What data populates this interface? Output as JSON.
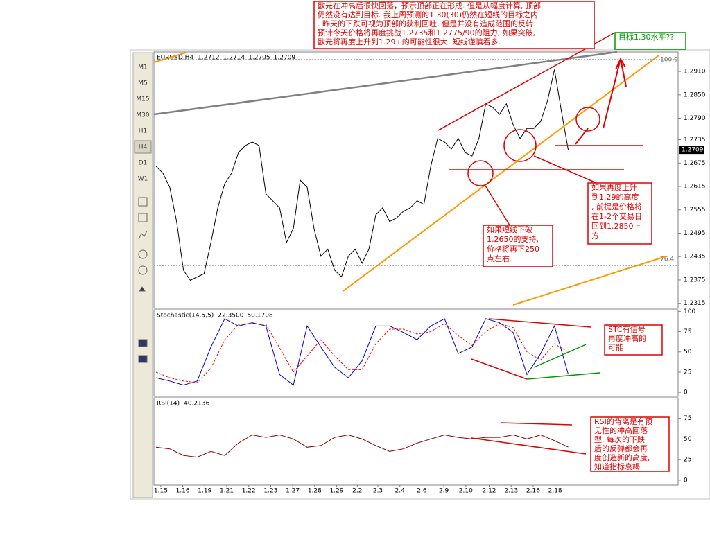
{
  "toolbar": [
    "M1",
    "M5",
    "M15",
    "M30",
    "H1",
    "H4",
    "D1",
    "W1"
  ],
  "annotations": [
    {
      "lines": [
        "欧元在冲高后很快回落，预示顶部正在形成. 但是从幅度计算, 顶部",
        "仍然没有达到目标. 我上周预测的1.30(30)仍然在短线的目标之内",
        ". 昨天的下跌可视为顶部的获利回吐, 但是并没有造成范围的反转.",
        "预计今天价格将再度挑战1.2735和1.2775/90的阻力, 如果突破,",
        "欧元将再度上升到1.29+的可能性很大. 短线谨慎看多."
      ]
    },
    {
      "lines": [
        "目标1.30水平??"
      ]
    },
    {
      "lines": [
        "如果再度上升",
        "到1.29的高度",
        ", 前提是价格将",
        "在1-2个交易日",
        "回到1.2850上",
        "方."
      ]
    },
    {
      "lines": [
        "如果短线下破",
        "1.2650的支持,",
        "价格将再下250",
        "点左右."
      ]
    },
    {
      "lines": [
        "STC有信号",
        "再度冲高的",
        "可能"
      ]
    },
    {
      "lines": [
        "RSI的背离是有预",
        "见性的冲高回落",
        "型, 每次的下跌",
        "后的反弹都会再",
        "度创造新的高度,",
        "知道指标衰竭"
      ]
    }
  ],
  "chart_data": [
    {
      "type": "line",
      "title": "EURUSD,H4",
      "readings": [
        1.2712,
        1.2714,
        1.2705,
        1.2709
      ],
      "current_price": 1.2709,
      "fib_levels": [
        {
          "value": 100,
          "label": "100.0"
        },
        76.4
      ],
      "x": [
        0,
        1,
        2,
        3,
        4,
        5,
        6,
        7,
        8,
        9,
        10,
        11,
        12,
        13,
        14,
        15,
        16,
        17,
        18,
        19,
        20,
        21,
        22,
        23,
        24,
        25,
        26,
        27,
        28,
        29,
        30,
        31,
        32,
        33,
        34,
        35,
        36,
        37,
        38,
        39,
        40,
        41,
        42,
        43,
        44,
        45,
        46,
        47,
        48,
        49,
        50,
        51,
        52,
        53,
        54,
        55,
        56,
        57,
        58,
        59,
        60
      ],
      "series": [
        {
          "color": "#000000",
          "values": [
            1.2667,
            1.2649,
            1.2613,
            1.2525,
            1.24,
            1.2374,
            1.2383,
            1.2391,
            1.2471,
            1.256,
            1.2622,
            1.2649,
            1.2702,
            1.272,
            1.2729,
            1.272,
            1.2596,
            1.2578,
            1.256,
            1.2471,
            1.2507,
            1.2631,
            1.2613,
            1.2507,
            1.2436,
            1.2454,
            1.24,
            1.2383,
            1.2436,
            1.2454,
            1.2418,
            1.2454,
            1.2542,
            1.256,
            1.2525,
            1.2534,
            1.2551,
            1.256,
            1.2578,
            1.2569,
            1.2667,
            1.2738,
            1.2729,
            1.2711,
            1.2738,
            1.2702,
            1.2693,
            1.2738,
            1.2827,
            1.2818,
            1.28,
            1.2827,
            1.2773,
            1.2738,
            1.2764,
            1.2764,
            1.2782,
            1.2835,
            1.2915,
            1.2809,
            1.2709
          ]
        }
      ],
      "xlim": [
        -0.3,
        76
      ],
      "ylim": [
        1.2302,
        1.296
      ],
      "yticks": [
        {
          "value": 1.291,
          "label": "1.2910"
        },
        {
          "value": 1.285,
          "label": "1.2850"
        },
        {
          "value": 1.279,
          "label": "1.2790"
        },
        1.2735,
        1.2675,
        1.2615,
        1.2555,
        1.2495,
        1.2435,
        1.2375,
        1.2315
      ]
    },
    {
      "type": "line",
      "title": "Stochastic(14,5,5)",
      "readings": [
        {
          "value": 22.35,
          "label": "22.3500"
        },
        {
          "value": 50.1708,
          "label": "50.1708"
        }
      ],
      "x": [
        0,
        2,
        4,
        6,
        8,
        10,
        12,
        14,
        16,
        18,
        20,
        22,
        24,
        26,
        28,
        30,
        32,
        34,
        36,
        38,
        40,
        42,
        44,
        46,
        48,
        50,
        52,
        54,
        56,
        58,
        60
      ],
      "series": [
        {
          "color": "#0000cc",
          "values": [
            18,
            14,
            9,
            14,
            56,
            91,
            82,
            86,
            82,
            22,
            9,
            82,
            56,
            31,
            18,
            39,
            82,
            82,
            74,
            65,
            82,
            91,
            48,
            56,
            91,
            86,
            74,
            22,
            48,
            82,
            22.35
          ]
        },
        {
          "color": "#ff0000",
          "dashed": true,
          "values": [
            25,
            18,
            14,
            12,
            30,
            65,
            84,
            85,
            84,
            55,
            25,
            45,
            65,
            45,
            28,
            28,
            60,
            78,
            78,
            72,
            75,
            85,
            70,
            58,
            75,
            85,
            80,
            50,
            40,
            60,
            50.1708
          ]
        }
      ],
      "xlim": [
        -0.3,
        76
      ],
      "ylim": [
        -5,
        102
      ],
      "yticks": [
        100,
        75,
        50,
        25,
        0
      ]
    },
    {
      "type": "line",
      "title": "RSI(14)",
      "readings": [
        40.2136
      ],
      "x": [
        0,
        2,
        4,
        6,
        8,
        10,
        12,
        14,
        16,
        18,
        20,
        22,
        24,
        26,
        28,
        30,
        32,
        34,
        36,
        38,
        40,
        42,
        44,
        46,
        48,
        50,
        52,
        54,
        56,
        58,
        60
      ],
      "series": [
        {
          "color": "#8b0000",
          "values": [
            40,
            38,
            30,
            28,
            35,
            30,
            45,
            55,
            52,
            55,
            50,
            40,
            42,
            52,
            55,
            50,
            42,
            35,
            38,
            45,
            50,
            55,
            52,
            50,
            52,
            52,
            55,
            50,
            55,
            48,
            40.2136
          ]
        }
      ],
      "xlim": [
        -0.3,
        76
      ],
      "ylim": [
        -6,
        100
      ],
      "yticks": [
        75,
        50,
        25,
        0
      ],
      "xticks": [
        {
          "value": 0.7,
          "label": "1.15"
        },
        {
          "value": 3.9,
          "label": "1.16"
        },
        {
          "value": 7.1,
          "label": "1.19"
        },
        {
          "value": 10.3,
          "label": "1.21"
        },
        {
          "value": 13.5,
          "label": "1.22"
        },
        {
          "value": 16.7,
          "label": "1.23"
        },
        {
          "value": 19.9,
          "label": "1.27"
        },
        {
          "value": 23.1,
          "label": "1.28"
        },
        {
          "value": 26.3,
          "label": "1.29"
        },
        {
          "value": 29.3,
          "label": "2.2"
        },
        {
          "value": 32.3,
          "label": "2.3"
        },
        {
          "value": 35.5,
          "label": "2.4"
        },
        {
          "value": 38.7,
          "label": "2.6"
        },
        {
          "value": 41.9,
          "label": "2.9"
        },
        {
          "value": 45.1,
          "label": "2.10"
        },
        {
          "value": 48.5,
          "label": "2.12"
        },
        {
          "value": 51.7,
          "label": "2.13"
        },
        {
          "value": 54.9,
          "label": "2.16"
        },
        {
          "value": 58.1,
          "label": "2.18"
        }
      ]
    }
  ]
}
